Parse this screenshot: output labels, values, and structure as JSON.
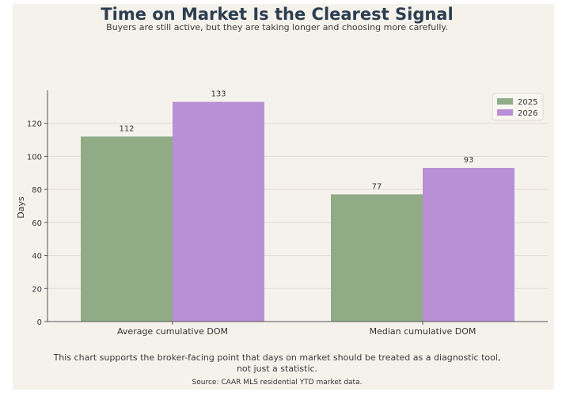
{
  "title": "Time on Market Is the Clearest Signal",
  "subtitle": "Buyers are still active, but they are taking longer and choosing more carefully.",
  "caption": "This chart supports the broker-facing point that days on market should be treated as a diagnostic tool, not just a statistic.",
  "source": "Source: CAAR MLS residential YTD market data.",
  "colors": {
    "2025": "#8fac87",
    "2026": "#b990d6"
  },
  "chart_data": {
    "type": "bar",
    "categories": [
      "Average cumulative DOM",
      "Median cumulative DOM"
    ],
    "series": [
      {
        "name": "2025",
        "values": [
          112,
          77
        ]
      },
      {
        "name": "2026",
        "values": [
          133,
          93
        ]
      }
    ],
    "title": "Time on Market Is the Clearest Signal",
    "xlabel": "",
    "ylabel": "Days",
    "ylim": [
      0,
      140
    ],
    "yticks": [
      0,
      20,
      40,
      60,
      80,
      100,
      120
    ],
    "grid": "horizontal",
    "legend": "top-right"
  }
}
